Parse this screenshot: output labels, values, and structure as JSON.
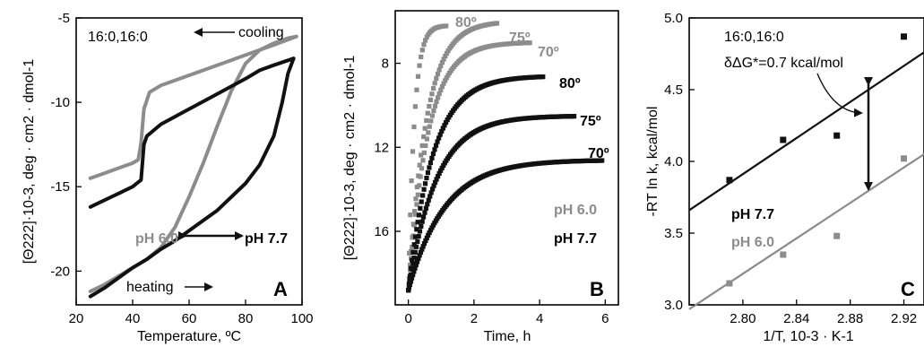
{
  "colors": {
    "black": "#111111",
    "gray": "#8c8c8c"
  },
  "chart_data": [
    {
      "type": "line",
      "panel_letter": "A",
      "xlabel": "Temperature, ºC",
      "ylabel": "[Θ222]·10-3, deg · cm2 · dmol-1",
      "xlim": [
        20,
        100
      ],
      "ylim": [
        -22,
        -5
      ],
      "xticks": [
        20,
        40,
        60,
        80,
        100
      ],
      "yticks": [
        -5,
        -10,
        -15,
        -20
      ],
      "xtick_labels": [
        "20",
        "40",
        "60",
        "80",
        "100"
      ],
      "ytick_labels": [
        "-5",
        "-10",
        "-15",
        "-20"
      ],
      "annotations": {
        "lipid": "16:0,16:0",
        "cooling": "cooling",
        "heating": "heating",
        "ph60": "pH 6.0",
        "ph77": "pH 7.7"
      },
      "series": [
        {
          "name": "pH 6.0",
          "color": "#8c8c8c",
          "branch": "heating",
          "x": [
            25,
            30,
            35,
            40,
            45,
            50,
            55,
            60,
            65,
            70,
            75,
            80,
            85,
            90,
            95,
            98
          ],
          "y": [
            -21.2,
            -20.8,
            -20.3,
            -19.8,
            -19.3,
            -18.6,
            -17.4,
            -15.6,
            -13.6,
            -11.4,
            -9.3,
            -7.7,
            -6.9,
            -6.5,
            -6.2,
            -6.1
          ]
        },
        {
          "name": "pH 6.0",
          "color": "#8c8c8c",
          "branch": "cooling",
          "x": [
            98,
            90,
            80,
            70,
            60,
            50,
            46,
            44,
            43,
            42,
            40,
            35,
            30,
            25
          ],
          "y": [
            -6.1,
            -6.6,
            -7.2,
            -7.8,
            -8.4,
            -9.0,
            -9.4,
            -10.4,
            -12.4,
            -13.4,
            -13.6,
            -13.9,
            -14.2,
            -14.5
          ]
        },
        {
          "name": "pH 7.7",
          "color": "#111111",
          "branch": "heating",
          "x": [
            25,
            30,
            35,
            40,
            45,
            50,
            55,
            60,
            65,
            70,
            75,
            80,
            85,
            90,
            93,
            95,
            97
          ],
          "y": [
            -21.5,
            -21.0,
            -20.4,
            -19.8,
            -19.3,
            -18.7,
            -18.2,
            -17.6,
            -17.0,
            -16.4,
            -15.6,
            -14.8,
            -13.7,
            -12.0,
            -10.0,
            -8.3,
            -7.4
          ]
        },
        {
          "name": "pH 7.7",
          "color": "#111111",
          "branch": "cooling",
          "x": [
            97,
            90,
            85,
            80,
            70,
            60,
            50,
            45,
            44,
            43,
            40,
            35,
            30,
            25
          ],
          "y": [
            -7.4,
            -7.8,
            -8.1,
            -8.6,
            -9.5,
            -10.4,
            -11.3,
            -12.0,
            -12.5,
            -14.6,
            -15.0,
            -15.4,
            -15.8,
            -16.2
          ]
        }
      ]
    },
    {
      "type": "scatter",
      "panel_letter": "B",
      "xlabel": "Time, h",
      "ylabel": "[Θ222]·10-3, deg · cm2 · dmol-1",
      "xlim": [
        -0.4,
        6.4
      ],
      "ylim": [
        19.5,
        5.5
      ],
      "y_inverted": true,
      "xticks": [
        0,
        2,
        4,
        6
      ],
      "yticks": [
        8,
        12,
        16
      ],
      "xtick_labels": [
        "0",
        "2",
        "4",
        "6"
      ],
      "ytick_labels": [
        "8",
        "12",
        "16"
      ],
      "annotations": {
        "ph60": "pH 6.0",
        "ph77": "pH 7.7"
      },
      "series": [
        {
          "name": "80º",
          "group": "pH 6.0",
          "color": "#8c8c8c",
          "y0": 18.8,
          "yinf": 6.2,
          "tau": 0.18,
          "tmax": 1.15
        },
        {
          "name": "75º",
          "group": "pH 6.0",
          "color": "#8c8c8c",
          "y0": 18.8,
          "yinf": 6.0,
          "tau": 0.55,
          "tmax": 2.7
        },
        {
          "name": "70º",
          "group": "pH 6.0",
          "color": "#8c8c8c",
          "y0": 18.8,
          "yinf": 7.0,
          "tau": 0.6,
          "tmax": 3.7
        },
        {
          "name": "80º",
          "group": "pH 7.7",
          "color": "#111111",
          "y0": 18.8,
          "yinf": 8.6,
          "tau": 0.75,
          "tmax": 4.1
        },
        {
          "name": "75º",
          "group": "pH 7.7",
          "color": "#111111",
          "y0": 18.8,
          "yinf": 10.5,
          "tau": 0.85,
          "tmax": 5.05
        },
        {
          "name": "70º",
          "group": "pH 7.7",
          "color": "#111111",
          "y0": 18.8,
          "yinf": 12.6,
          "tau": 1.1,
          "tmax": 5.9
        }
      ]
    },
    {
      "type": "scatter",
      "panel_letter": "C",
      "xlabel": "1/T, 10-3 · K-1",
      "ylabel": "-RT ln k, kcal/mol",
      "xlim": [
        2.76,
        2.935
      ],
      "ylim": [
        3.0,
        5.0
      ],
      "xticks": [
        2.8,
        2.84,
        2.88,
        2.92
      ],
      "yticks": [
        3.0,
        3.5,
        4.0,
        4.5,
        5.0
      ],
      "xtick_labels": [
        "2.80",
        "2.84",
        "2.88",
        "2.92"
      ],
      "ytick_labels": [
        "3.0",
        "3.5",
        "4.0",
        "4.5",
        "5.0"
      ],
      "annotations": {
        "lipid": "16:0,16:0",
        "ddg": "δΔG*=0.7 kcal/mol",
        "ph77": "pH 7.7",
        "ph60": "pH 6.0"
      },
      "series": [
        {
          "name": "pH 7.7",
          "color": "#111111",
          "x": [
            2.79,
            2.83,
            2.87,
            2.92
          ],
          "y": [
            3.87,
            4.15,
            4.18,
            4.87
          ],
          "fit": [
            [
              2.76,
              3.66
            ],
            [
              2.935,
              4.76
            ]
          ]
        },
        {
          "name": "pH 6.0",
          "color": "#8c8c8c",
          "x": [
            2.79,
            2.83,
            2.87,
            2.92
          ],
          "y": [
            3.15,
            3.35,
            3.48,
            4.02
          ],
          "fit": [
            [
              2.76,
              2.97
            ],
            [
              2.935,
              4.05
            ]
          ]
        }
      ]
    }
  ]
}
